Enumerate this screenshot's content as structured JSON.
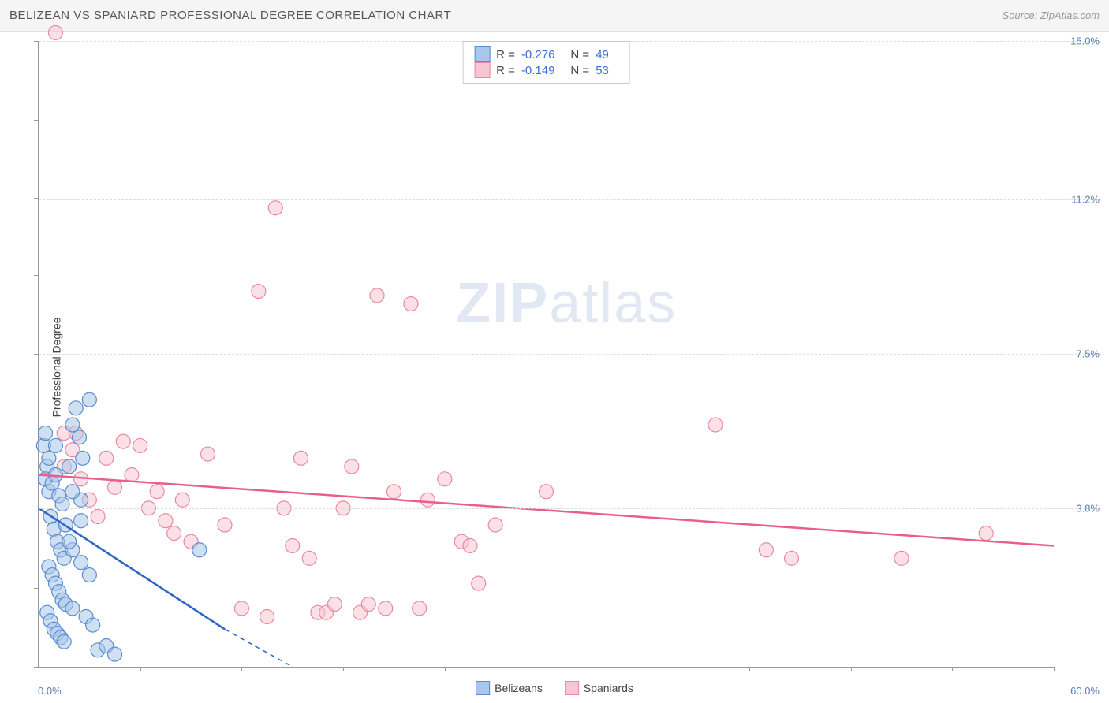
{
  "title": "BELIZEAN VS SPANIARD PROFESSIONAL DEGREE CORRELATION CHART",
  "source": "Source: ZipAtlas.com",
  "ylabel": "Professional Degree",
  "watermark": {
    "bold": "ZIP",
    "light": "atlas"
  },
  "colors": {
    "title_bar_bg": "#f5f5f5",
    "title_text": "#555555",
    "source_text": "#999999",
    "axis_text": "#5b7eb8",
    "stats_val": "#3b6fd6",
    "grid": "#dddddd",
    "border": "#999999",
    "series_a_fill": "#a9c7ea",
    "series_a_stroke": "#5a8ccf",
    "series_a_line": "#2a66c4",
    "series_b_fill": "#f7c6d2",
    "series_b_stroke": "#e889a6",
    "series_b_line": "#e95f8c"
  },
  "chart": {
    "type": "scatter",
    "xlim": [
      0,
      60
    ],
    "ylim": [
      0,
      15
    ],
    "x_ticks": [
      0,
      6,
      12,
      18,
      24,
      30,
      36,
      42,
      48,
      54,
      60
    ],
    "y_ticks": [
      0,
      1.88,
      3.75,
      5.62,
      7.5,
      9.38,
      11.25,
      13.12,
      15
    ],
    "y_grid": [
      3.8,
      7.5,
      11.2,
      15.0
    ],
    "y_grid_labels": [
      "3.8%",
      "7.5%",
      "11.2%",
      "15.0%"
    ],
    "x_min_label": "0.0%",
    "x_max_label": "60.0%",
    "marker_radius": 9,
    "marker_opacity": 0.55,
    "line_width": 2.5
  },
  "stats": [
    {
      "r_label": "R =",
      "r_val": "-0.276",
      "n_label": "N =",
      "n_val": "49"
    },
    {
      "r_label": "R =",
      "r_val": "-0.149",
      "n_label": "N =",
      "n_val": "53"
    }
  ],
  "legend": [
    {
      "label": "Belizeans"
    },
    {
      "label": "Spaniards"
    }
  ],
  "series_a": {
    "name": "Belizeans",
    "trend": {
      "x1": 0,
      "y1": 3.8,
      "x2": 11,
      "y2": 0.9,
      "dashed_to_x": 15
    },
    "points": [
      [
        0.3,
        5.3
      ],
      [
        0.5,
        4.8
      ],
      [
        0.4,
        4.5
      ],
      [
        0.6,
        4.2
      ],
      [
        0.8,
        4.4
      ],
      [
        1.0,
        4.6
      ],
      [
        1.2,
        4.1
      ],
      [
        1.4,
        3.9
      ],
      [
        0.7,
        3.6
      ],
      [
        0.9,
        3.3
      ],
      [
        1.1,
        3.0
      ],
      [
        1.3,
        2.8
      ],
      [
        1.5,
        2.6
      ],
      [
        0.6,
        2.4
      ],
      [
        0.8,
        2.2
      ],
      [
        1.0,
        2.0
      ],
      [
        1.2,
        1.8
      ],
      [
        1.4,
        1.6
      ],
      [
        1.6,
        1.5
      ],
      [
        0.5,
        1.3
      ],
      [
        0.7,
        1.1
      ],
      [
        0.9,
        0.9
      ],
      [
        1.1,
        0.8
      ],
      [
        1.3,
        0.7
      ],
      [
        1.5,
        0.6
      ],
      [
        2.0,
        5.8
      ],
      [
        2.2,
        6.2
      ],
      [
        2.4,
        5.5
      ],
      [
        2.6,
        5.0
      ],
      [
        3.0,
        6.4
      ],
      [
        2.0,
        2.8
      ],
      [
        2.5,
        2.5
      ],
      [
        3.0,
        2.2
      ],
      [
        1.8,
        3.0
      ],
      [
        3.5,
        0.4
      ],
      [
        4.0,
        0.5
      ],
      [
        4.5,
        0.3
      ],
      [
        2.5,
        4.0
      ],
      [
        2.0,
        1.4
      ],
      [
        2.8,
        1.2
      ],
      [
        3.2,
        1.0
      ],
      [
        1.6,
        3.4
      ],
      [
        1.8,
        4.8
      ],
      [
        2.0,
        4.2
      ],
      [
        2.5,
        3.5
      ],
      [
        0.4,
        5.6
      ],
      [
        0.6,
        5.0
      ],
      [
        1.0,
        5.3
      ],
      [
        9.5,
        2.8
      ]
    ]
  },
  "series_b": {
    "name": "Spaniards",
    "trend": {
      "x1": 0,
      "y1": 4.6,
      "x2": 60,
      "y2": 2.9
    },
    "points": [
      [
        1.0,
        15.2
      ],
      [
        1.5,
        4.8
      ],
      [
        2.0,
        5.2
      ],
      [
        2.5,
        4.5
      ],
      [
        3.0,
        4.0
      ],
      [
        3.5,
        3.6
      ],
      [
        4.0,
        5.0
      ],
      [
        4.5,
        4.3
      ],
      [
        5.0,
        5.4
      ],
      [
        5.5,
        4.6
      ],
      [
        6.0,
        5.3
      ],
      [
        6.5,
        3.8
      ],
      [
        7.0,
        4.2
      ],
      [
        7.5,
        3.5
      ],
      [
        8.0,
        3.2
      ],
      [
        8.5,
        4.0
      ],
      [
        9.0,
        3.0
      ],
      [
        10.0,
        5.1
      ],
      [
        11.0,
        3.4
      ],
      [
        12.0,
        1.4
      ],
      [
        13.0,
        9.0
      ],
      [
        13.5,
        1.2
      ],
      [
        14.0,
        11.0
      ],
      [
        14.5,
        3.8
      ],
      [
        15.0,
        2.9
      ],
      [
        15.5,
        5.0
      ],
      [
        16.0,
        2.6
      ],
      [
        16.5,
        1.3
      ],
      [
        17.0,
        1.3
      ],
      [
        17.5,
        1.5
      ],
      [
        18.0,
        3.8
      ],
      [
        18.5,
        4.8
      ],
      [
        19.0,
        1.3
      ],
      [
        19.5,
        1.5
      ],
      [
        20.0,
        8.9
      ],
      [
        20.5,
        1.4
      ],
      [
        21.0,
        4.2
      ],
      [
        22.0,
        8.7
      ],
      [
        22.5,
        1.4
      ],
      [
        23.0,
        4.0
      ],
      [
        24.0,
        4.5
      ],
      [
        25.0,
        3.0
      ],
      [
        25.5,
        2.9
      ],
      [
        26.0,
        2.0
      ],
      [
        27.0,
        3.4
      ],
      [
        30.0,
        4.2
      ],
      [
        40.0,
        5.8
      ],
      [
        43.0,
        2.8
      ],
      [
        44.5,
        2.6
      ],
      [
        51.0,
        2.6
      ],
      [
        56.0,
        3.2
      ],
      [
        1.5,
        5.6
      ],
      [
        2.2,
        5.6
      ]
    ]
  }
}
